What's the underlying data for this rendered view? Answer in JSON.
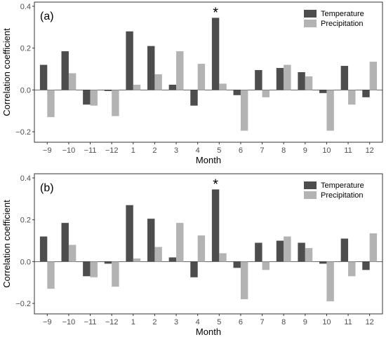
{
  "chart_data": [
    {
      "type": "bar",
      "panel_label": "(a)",
      "xlabel": "Month",
      "ylabel": "Correlation coefficient",
      "categories": [
        "−9",
        "−10",
        "−11",
        "−12",
        "1",
        "2",
        "3",
        "4",
        "5",
        "6",
        "7",
        "8",
        "9",
        "10",
        "11",
        "12"
      ],
      "ylim": [
        -0.25,
        0.42
      ],
      "yticks": [
        -0.2,
        0.0,
        0.2,
        0.4
      ],
      "ytick_labels": [
        "−0.2",
        "0.0",
        "0.2",
        "0.4"
      ],
      "grid": false,
      "legend_position": "top-right",
      "series": [
        {
          "name": "Temperature",
          "color": "#4d4d4d",
          "values": [
            0.12,
            0.185,
            -0.07,
            -0.005,
            0.28,
            0.21,
            0.025,
            -0.075,
            0.345,
            -0.025,
            0.095,
            0.105,
            0.085,
            -0.015,
            0.115,
            -0.035
          ]
        },
        {
          "name": "Precipitation",
          "color": "#b3b3b3",
          "values": [
            -0.13,
            0.08,
            -0.075,
            -0.125,
            0.025,
            0.075,
            0.185,
            0.125,
            0.03,
            -0.195,
            -0.035,
            0.12,
            0.065,
            -0.195,
            -0.07,
            0.135
          ]
        }
      ],
      "annotations": [
        {
          "text": "*",
          "category": "5"
        }
      ]
    },
    {
      "type": "bar",
      "panel_label": "(b)",
      "xlabel": "Month",
      "ylabel": "Correlation coefficient",
      "categories": [
        "−9",
        "−10",
        "−11",
        "−12",
        "1",
        "2",
        "3",
        "4",
        "5",
        "6",
        "7",
        "8",
        "9",
        "10",
        "11",
        "12"
      ],
      "ylim": [
        -0.25,
        0.42
      ],
      "yticks": [
        -0.2,
        0.0,
        0.2,
        0.4
      ],
      "ytick_labels": [
        "−0.2",
        "0.0",
        "0.2",
        "0.4"
      ],
      "grid": false,
      "legend_position": "top-right",
      "series": [
        {
          "name": "Temperature",
          "color": "#4d4d4d",
          "values": [
            0.12,
            0.185,
            -0.07,
            -0.01,
            0.27,
            0.205,
            0.02,
            -0.075,
            0.345,
            -0.03,
            0.09,
            0.1,
            0.09,
            -0.01,
            0.11,
            -0.04
          ]
        },
        {
          "name": "Precipitation",
          "color": "#b3b3b3",
          "values": [
            -0.13,
            0.08,
            -0.075,
            -0.12,
            0.015,
            0.07,
            0.185,
            0.125,
            0.04,
            -0.18,
            -0.04,
            0.12,
            0.065,
            -0.19,
            -0.07,
            0.135
          ]
        }
      ],
      "annotations": [
        {
          "text": "*",
          "category": "5"
        }
      ]
    }
  ]
}
